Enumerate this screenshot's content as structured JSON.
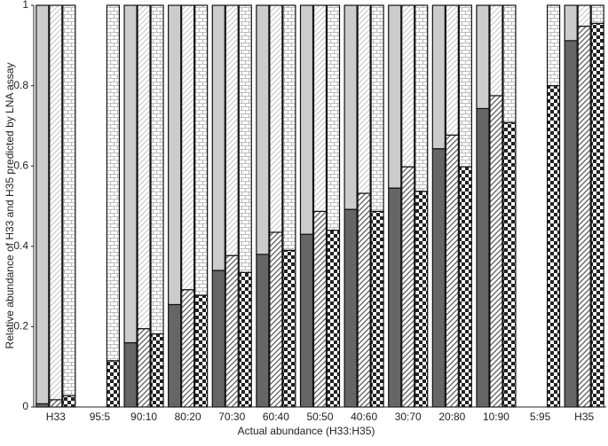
{
  "chart_data": {
    "type": "stacked-bar",
    "x_label": "Actual abundance (H33:H35)",
    "y_label": "Relative abundance of H33 and H35 predicted by LNA assay",
    "categories": [
      "H33",
      "95:5",
      "90:10",
      "80:20",
      "70:30",
      "60:40",
      "50:50",
      "40:60",
      "30:70",
      "20:80",
      "10:90",
      "5:95",
      "H35"
    ],
    "ylim": [
      0,
      1
    ],
    "yticks": [
      0,
      0.2,
      0.4,
      0.6,
      0.8,
      1
    ],
    "series": [
      {
        "stack": 0,
        "pattern": "solid",
        "color": "#666666",
        "values": [
          0.008,
          null,
          0.16,
          0.255,
          0.34,
          0.38,
          0.43,
          0.492,
          0.545,
          0.643,
          0.743,
          null,
          0.912
        ]
      },
      {
        "stack": 0,
        "pattern": "solid",
        "color": "#cccccc",
        "values": [
          0.992,
          null,
          0.84,
          0.745,
          0.66,
          0.62,
          0.57,
          0.508,
          0.455,
          0.357,
          0.257,
          null,
          0.088
        ]
      },
      {
        "stack": 1,
        "pattern": "diagonal",
        "color": "#555555",
        "values": [
          0.018,
          null,
          0.195,
          0.292,
          0.377,
          0.435,
          0.487,
          0.532,
          0.598,
          0.677,
          0.775,
          null,
          0.948
        ]
      },
      {
        "stack": 1,
        "pattern": "diagonal",
        "color": "#cccccc",
        "values": [
          0.982,
          null,
          0.805,
          0.708,
          0.623,
          0.565,
          0.513,
          0.468,
          0.402,
          0.323,
          0.225,
          null,
          0.052
        ]
      },
      {
        "stack": 2,
        "pattern": "checker",
        "color": "#222222",
        "values": [
          0.028,
          0.115,
          0.182,
          0.278,
          0.335,
          0.39,
          0.44,
          0.487,
          0.537,
          0.598,
          0.708,
          0.8,
          0.955
        ]
      },
      {
        "stack": 2,
        "pattern": "brick",
        "color": "#bbbbbb",
        "values": [
          0.972,
          0.885,
          0.818,
          0.722,
          0.665,
          0.61,
          0.56,
          0.513,
          0.463,
          0.402,
          0.292,
          0.2,
          0.045
        ]
      }
    ]
  }
}
